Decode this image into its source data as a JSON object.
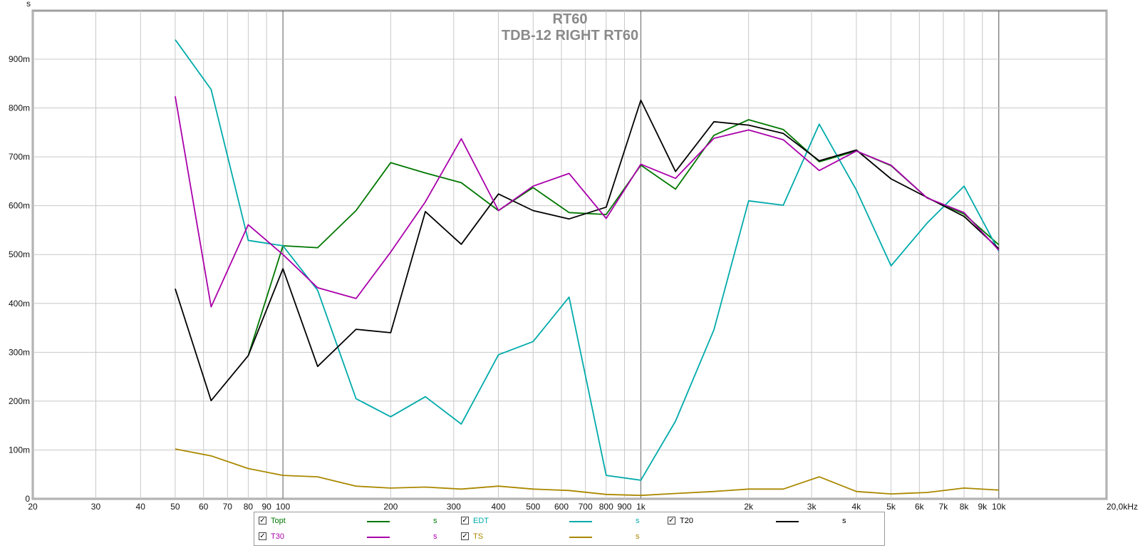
{
  "chart_data": {
    "type": "line",
    "title": "RT60",
    "subtitle": "TDB-12 RIGHT RT60",
    "ylabel": "s",
    "x_unit_label": "20,0kHz",
    "x_scale": "log",
    "xlim": [
      20,
      20000
    ],
    "ylim": [
      0,
      0.9
    ],
    "grid": true,
    "legend_position": "bottom",
    "x_tick_labels": [
      {
        "v": 20,
        "t": "20"
      },
      {
        "v": 30,
        "t": "30"
      },
      {
        "v": 40,
        "t": "40"
      },
      {
        "v": 50,
        "t": "50"
      },
      {
        "v": 60,
        "t": "60"
      },
      {
        "v": 70,
        "t": "70"
      },
      {
        "v": 80,
        "t": "80"
      },
      {
        "v": 90,
        "t": "90"
      },
      {
        "v": 100,
        "t": "100"
      },
      {
        "v": 200,
        "t": "200"
      },
      {
        "v": 300,
        "t": "300"
      },
      {
        "v": 400,
        "t": "400"
      },
      {
        "v": 500,
        "t": "500"
      },
      {
        "v": 600,
        "t": "600"
      },
      {
        "v": 700,
        "t": "700"
      },
      {
        "v": 800,
        "t": "800"
      },
      {
        "v": 900,
        "t": "900"
      },
      {
        "v": 1000,
        "t": "1k"
      },
      {
        "v": 2000,
        "t": "2k"
      },
      {
        "v": 3000,
        "t": "3k"
      },
      {
        "v": 4000,
        "t": "4k"
      },
      {
        "v": 5000,
        "t": "5k"
      },
      {
        "v": 6000,
        "t": "6k"
      },
      {
        "v": 7000,
        "t": "7k"
      },
      {
        "v": 8000,
        "t": "8k"
      },
      {
        "v": 9000,
        "t": "9k"
      },
      {
        "v": 10000,
        "t": "10k"
      }
    ],
    "y_tick_labels": [
      {
        "v": 0,
        "t": "0"
      },
      {
        "v": 0.1,
        "t": "100m"
      },
      {
        "v": 0.2,
        "t": "200m"
      },
      {
        "v": 0.3,
        "t": "300m"
      },
      {
        "v": 0.4,
        "t": "400m"
      },
      {
        "v": 0.5,
        "t": "500m"
      },
      {
        "v": 0.6,
        "t": "600m"
      },
      {
        "v": 0.7,
        "t": "700m"
      },
      {
        "v": 0.8,
        "t": "800m"
      },
      {
        "v": 0.9,
        "t": "900m"
      }
    ],
    "x": [
      50,
      63,
      80,
      100,
      125,
      160,
      200,
      250,
      315,
      400,
      500,
      630,
      800,
      1000,
      1250,
      1600,
      2000,
      2500,
      3150,
      4000,
      5000,
      6300,
      8000,
      10000
    ],
    "series": [
      {
        "name": "Topt",
        "color": "#007700",
        "values": [
          null,
          null,
          0.293,
          0.518,
          0.514,
          0.59,
          0.688,
          0.667,
          0.647,
          0.59,
          0.637,
          0.586,
          0.582,
          0.683,
          0.634,
          0.744,
          0.776,
          0.756,
          0.69,
          0.712,
          0.682,
          0.616,
          0.583,
          0.52
        ]
      },
      {
        "name": "EDT",
        "color": "#00aaaa",
        "values": [
          0.94,
          0.838,
          0.529,
          0.518,
          0.427,
          0.205,
          0.168,
          0.209,
          0.153,
          0.295,
          0.322,
          0.413,
          0.048,
          0.038,
          0.159,
          0.346,
          0.61,
          0.601,
          0.767,
          0.632,
          0.477,
          0.564,
          0.64,
          0.507
        ]
      },
      {
        "name": "T20",
        "color": "#000000",
        "values": [
          0.43,
          0.201,
          0.293,
          0.471,
          0.271,
          0.347,
          0.34,
          0.588,
          0.521,
          0.624,
          0.59,
          0.573,
          0.597,
          0.816,
          0.67,
          0.772,
          0.765,
          0.748,
          0.692,
          0.714,
          0.655,
          0.617,
          0.578,
          0.512
        ]
      },
      {
        "name": "T30",
        "color": "#aa00aa",
        "values": [
          0.824,
          0.393,
          0.561,
          0.5,
          0.432,
          0.41,
          0.505,
          0.608,
          0.737,
          0.59,
          0.64,
          0.666,
          0.574,
          0.685,
          0.656,
          0.738,
          0.755,
          0.735,
          0.672,
          0.712,
          0.683,
          0.616,
          0.586,
          0.509
        ]
      },
      {
        "name": "TS",
        "color": "#aa8800",
        "values": [
          0.102,
          0.088,
          0.062,
          0.048,
          0.045,
          0.026,
          0.022,
          0.024,
          0.02,
          0.026,
          0.02,
          0.017,
          0.009,
          0.007,
          0.011,
          0.015,
          0.02,
          0.02,
          0.045,
          0.015,
          0.01,
          0.013,
          0.022,
          0.018
        ]
      }
    ]
  },
  "legend": {
    "items": [
      {
        "label": "Topt",
        "unit": "s",
        "color": "#007700",
        "check": "✓"
      },
      {
        "label": "EDT",
        "unit": "s",
        "color": "#00aaaa",
        "check": "✓"
      },
      {
        "label": "T20",
        "unit": "s",
        "color": "#000000",
        "check": "✓"
      },
      {
        "label": "T30",
        "unit": "s",
        "color": "#aa00aa",
        "check": "✓"
      },
      {
        "label": "TS",
        "unit": "s",
        "color": "#aa8800",
        "check": "✓"
      }
    ]
  }
}
